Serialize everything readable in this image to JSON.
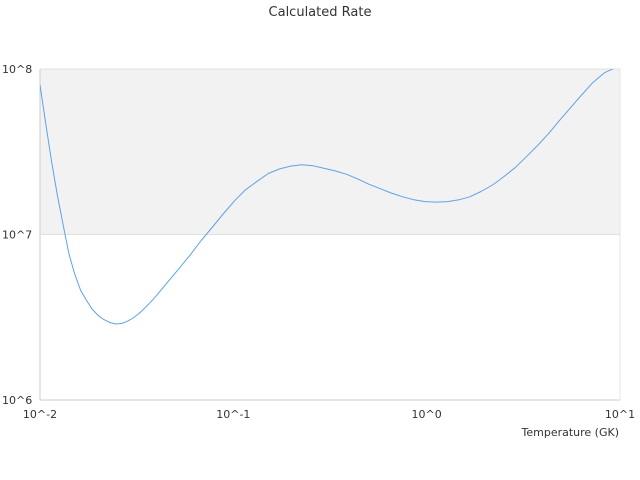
{
  "chart_data": {
    "type": "line",
    "title": "Calculated Rate",
    "xlabel": "Temperature (GK)",
    "ylabel": "",
    "x_scale": "log",
    "y_scale": "log",
    "xlim": [
      0.01,
      10
    ],
    "ylim": [
      1000000,
      100000000
    ],
    "x_ticks": [
      {
        "value": 0.01,
        "label": "10^-2"
      },
      {
        "value": 0.1,
        "label": "10^-1"
      },
      {
        "value": 1,
        "label": "10^0"
      },
      {
        "value": 10,
        "label": "10^1"
      }
    ],
    "y_ticks": [
      {
        "value": 1000000,
        "label": "10^6"
      },
      {
        "value": 10000000,
        "label": "10^7"
      },
      {
        "value": 100000000,
        "label": "10^8"
      }
    ],
    "bands": [
      {
        "from": 10000000,
        "to": 100000000,
        "color": "#f2f2f2"
      }
    ],
    "grid": false,
    "legend": "none",
    "colors": {
      "line": "#5ba3e8",
      "axis": "#cccccc",
      "text": "#333333"
    },
    "series": [
      {
        "x": [
          0.01,
          0.0107,
          0.0115,
          0.0123,
          0.0132,
          0.0141,
          0.0151,
          0.0162,
          0.0174,
          0.0186,
          0.02,
          0.0214,
          0.023,
          0.0246,
          0.0264,
          0.0283,
          0.0303,
          0.0325,
          0.0348,
          0.0373,
          0.04,
          0.0457,
          0.0522,
          0.0597,
          0.0682,
          0.078,
          0.0891,
          0.102,
          0.116,
          0.133,
          0.152,
          0.174,
          0.198,
          0.226,
          0.259,
          0.296,
          0.338,
          0.386,
          0.441,
          0.504,
          0.576,
          0.658,
          0.752,
          0.859,
          0.982,
          1.12,
          1.28,
          1.47,
          1.67,
          1.91,
          2.19,
          2.5,
          2.86,
          3.26,
          3.73,
          4.26,
          4.87,
          5.57,
          6.36,
          7.27,
          8.31,
          9.49
        ],
        "y": [
          80000000,
          47000000,
          27300000,
          17200000,
          11300000,
          7700000,
          5800000,
          4620000,
          4000000,
          3540000,
          3240000,
          3060000,
          2940000,
          2880000,
          2900000,
          2990000,
          3130000,
          3330000,
          3590000,
          3900000,
          4270000,
          5150000,
          6200000,
          7500000,
          9200000,
          11100000,
          13400000,
          16100000,
          18700000,
          21000000,
          23400000,
          24900000,
          25900000,
          26400000,
          26000000,
          25100000,
          24200000,
          23100000,
          21600000,
          20100000,
          18900000,
          17800000,
          16900000,
          16200000,
          15800000,
          15700000,
          15800000,
          16200000,
          16900000,
          18200000,
          19900000,
          22300000,
          25300000,
          29300000,
          34300000,
          40600000,
          49000000,
          58700000,
          70100000,
          83200000,
          95000000,
          102000000
        ]
      }
    ]
  }
}
